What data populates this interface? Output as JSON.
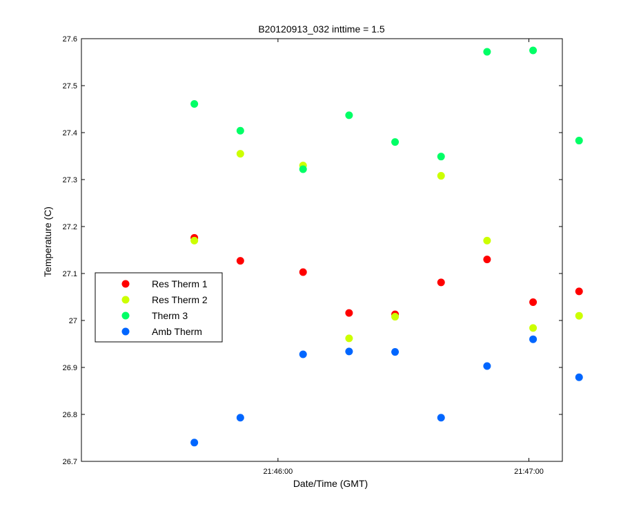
{
  "chart_data": {
    "type": "scatter",
    "title": "B20120913_032 inttime = 1.5",
    "xlabel": "Date/Time (GMT)",
    "ylabel": "Temperature (C)",
    "xlim": [
      "21:45:13",
      "21:47:08"
    ],
    "ylim": [
      26.7,
      27.6
    ],
    "x_ticks": [
      "21:46:00",
      "21:47:00"
    ],
    "y_ticks": [
      26.7,
      26.8,
      26.9,
      27.0,
      27.1,
      27.2,
      27.3,
      27.4,
      27.5,
      27.6
    ],
    "y_tick_labels": [
      "26.7",
      "26.8",
      "26.9",
      "27",
      "27.1",
      "27.2",
      "27.3",
      "27.4",
      "27.5",
      "27.6"
    ],
    "grid": false,
    "legend_position": "middle-left",
    "x": [
      "21:45:40",
      "21:45:51",
      "21:46:06",
      "21:46:17",
      "21:46:28",
      "21:46:39",
      "21:46:50",
      "21:47:01",
      "21:47:12"
    ],
    "series": [
      {
        "name": "Res Therm 1",
        "color": "#ff0000",
        "values": [
          27.176,
          27.127,
          27.103,
          27.016,
          27.013,
          27.081,
          27.13,
          27.039,
          27.062
        ]
      },
      {
        "name": "Res Therm 2",
        "color": "#ccff00",
        "values": [
          27.17,
          27.355,
          27.33,
          26.962,
          27.008,
          27.308,
          27.17,
          26.984,
          27.01
        ]
      },
      {
        "name": "Therm 3",
        "color": "#00ff66",
        "values": [
          27.461,
          27.404,
          27.322,
          27.437,
          27.38,
          27.349,
          27.572,
          27.575,
          27.383
        ]
      },
      {
        "name": "Amb Therm",
        "color": "#0066ff",
        "values": [
          26.74,
          26.793,
          26.928,
          26.934,
          26.933,
          26.793,
          26.903,
          26.96,
          26.879
        ]
      }
    ]
  }
}
